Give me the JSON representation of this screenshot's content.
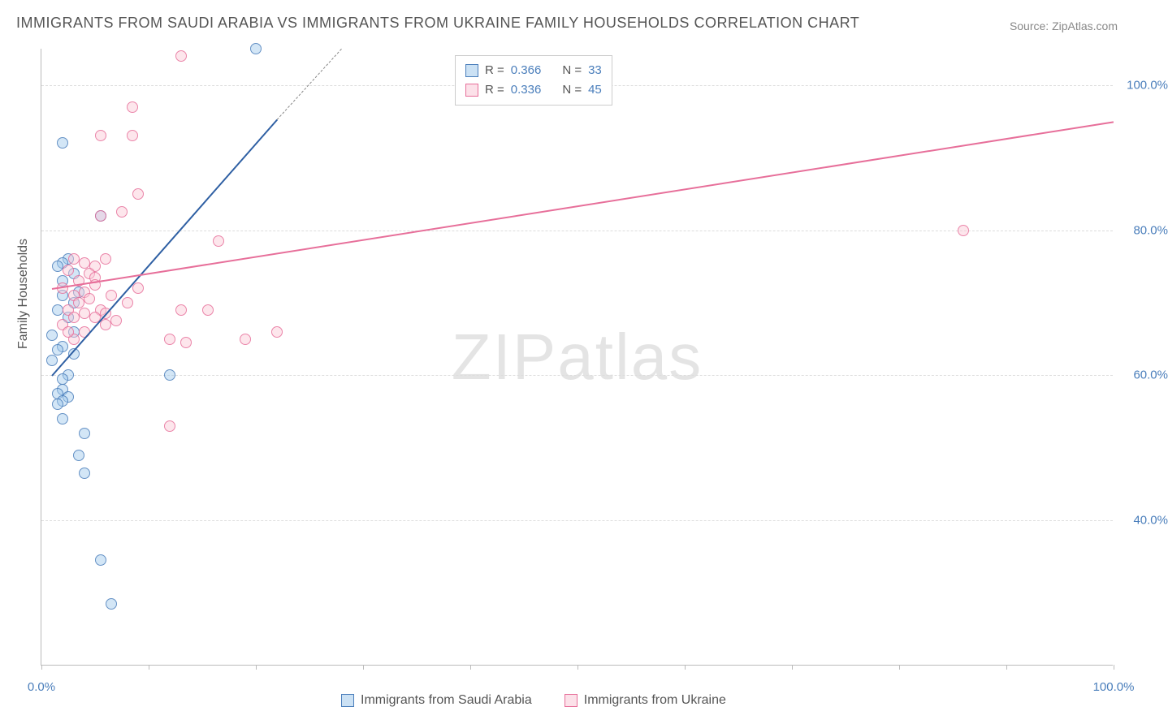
{
  "title": "IMMIGRANTS FROM SAUDI ARABIA VS IMMIGRANTS FROM UKRAINE FAMILY HOUSEHOLDS CORRELATION CHART",
  "source_label": "Source:",
  "source_name": "ZipAtlas.com",
  "watermark": "ZIPatlas",
  "y_axis_label": "Family Households",
  "chart": {
    "type": "scatter",
    "xlim": [
      0,
      100
    ],
    "ylim": [
      20,
      105
    ],
    "x_ticks": [
      0,
      10,
      20,
      30,
      40,
      50,
      60,
      70,
      80,
      90,
      100
    ],
    "x_tick_labels": {
      "0": "0.0%",
      "100": "100.0%"
    },
    "y_ticks": [
      40,
      60,
      80,
      100
    ],
    "y_tick_labels": {
      "40": "40.0%",
      "60": "60.0%",
      "80": "80.0%",
      "100": "100.0%"
    },
    "background_color": "#ffffff",
    "grid_color": "#dddddd",
    "axis_color": "#bbbbbb",
    "tick_label_color": "#4a7ebb",
    "marker_radius": 7,
    "series": [
      {
        "name": "Immigrants from Saudi Arabia",
        "color_fill": "rgba(160,200,235,0.55)",
        "color_stroke": "#4a7ebb",
        "r_value": "0.366",
        "n_value": "33",
        "trend": {
          "x1": 1,
          "y1": 60,
          "x2": 26,
          "y2": 102,
          "dash_from_x": 22,
          "color": "#2e5fa3",
          "width": 2
        },
        "points": [
          [
            2,
            92
          ],
          [
            5.5,
            82
          ],
          [
            2.5,
            76
          ],
          [
            2,
            75.5
          ],
          [
            1.5,
            75
          ],
          [
            3,
            74
          ],
          [
            2,
            73
          ],
          [
            3.5,
            71.5
          ],
          [
            2,
            71
          ],
          [
            3,
            70
          ],
          [
            1.5,
            69
          ],
          [
            2.5,
            68
          ],
          [
            1,
            65.5
          ],
          [
            2,
            64
          ],
          [
            1.5,
            63.5
          ],
          [
            3,
            63
          ],
          [
            1,
            62
          ],
          [
            2.5,
            60
          ],
          [
            2,
            59.5
          ],
          [
            12,
            60
          ],
          [
            2,
            58
          ],
          [
            1.5,
            57.5
          ],
          [
            2.5,
            57
          ],
          [
            2,
            56.5
          ],
          [
            1.5,
            56
          ],
          [
            2,
            54
          ],
          [
            4,
            52
          ],
          [
            3.5,
            49
          ],
          [
            4,
            46.5
          ],
          [
            5.5,
            34.5
          ],
          [
            6.5,
            28.5
          ],
          [
            3,
            66
          ],
          [
            20,
            105
          ]
        ]
      },
      {
        "name": "Immigrants from Ukraine",
        "color_fill": "rgba(250,200,215,0.55)",
        "color_stroke": "#e76f9a",
        "r_value": "0.336",
        "n_value": "45",
        "trend": {
          "x1": 1,
          "y1": 72,
          "x2": 100,
          "y2": 95,
          "color": "#e76f9a",
          "width": 2
        },
        "points": [
          [
            13,
            104
          ],
          [
            8.5,
            97
          ],
          [
            8.5,
            93
          ],
          [
            5.5,
            93
          ],
          [
            9,
            85
          ],
          [
            7.5,
            82.5
          ],
          [
            5.5,
            82
          ],
          [
            16.5,
            78.5
          ],
          [
            6,
            76
          ],
          [
            3,
            76
          ],
          [
            4,
            75.5
          ],
          [
            5,
            75
          ],
          [
            2.5,
            74.5
          ],
          [
            4.5,
            74
          ],
          [
            5,
            73.5
          ],
          [
            3.5,
            73
          ],
          [
            5,
            72.5
          ],
          [
            2,
            72
          ],
          [
            4,
            71.5
          ],
          [
            3,
            71
          ],
          [
            4.5,
            70.5
          ],
          [
            3.5,
            70
          ],
          [
            5.5,
            69
          ],
          [
            2.5,
            69
          ],
          [
            4,
            68.5
          ],
          [
            6,
            68.5
          ],
          [
            3,
            68
          ],
          [
            5,
            68
          ],
          [
            13,
            69
          ],
          [
            15.5,
            69
          ],
          [
            2,
            67
          ],
          [
            4,
            66
          ],
          [
            3,
            65
          ],
          [
            6,
            67
          ],
          [
            12,
            65
          ],
          [
            13.5,
            64.5
          ],
          [
            19,
            65
          ],
          [
            22,
            66
          ],
          [
            12,
            53
          ],
          [
            7,
            67.5
          ],
          [
            8,
            70
          ],
          [
            9,
            72
          ],
          [
            6.5,
            71
          ],
          [
            86,
            80
          ],
          [
            2.5,
            66
          ]
        ]
      }
    ]
  },
  "legend_corr": {
    "r_label": "R =",
    "n_label": "N ="
  },
  "colors": {
    "blue_stroke": "#4a7ebb",
    "pink_stroke": "#e76f9a",
    "trend_blue": "#2e5fa3"
  }
}
